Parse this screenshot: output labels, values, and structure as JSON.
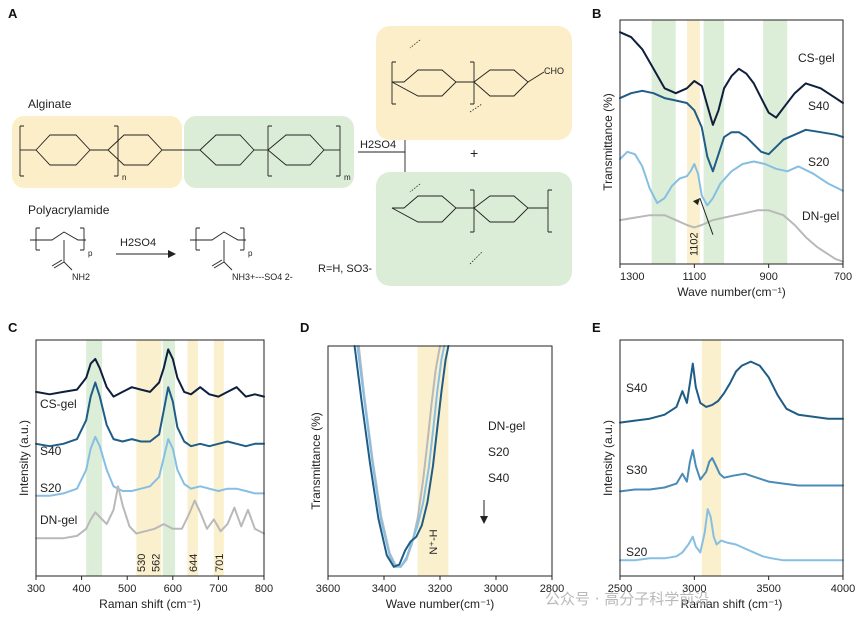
{
  "panel_labels": [
    "A",
    "B",
    "C",
    "D",
    "E"
  ],
  "panel_a": {
    "alginate_label": "Alginate",
    "polyacrylamide_label": "Polyacrylamide",
    "reagent": "H2SO4",
    "plus": "+",
    "r_definition": "R=H, SO3-",
    "sulfate_label": "SO4 2-",
    "amide_product": "NH3+---SO4 2-",
    "nh2": "NH2",
    "p": "p",
    "n": "n",
    "m": "m",
    "cho": "CHO"
  },
  "colors": {
    "cs_gel": "#0d1f3c",
    "s40": "#1f5d86",
    "s30": "#4a8bb8",
    "s20": "#86bfe3",
    "dn_gel": "#b9b9b9",
    "yellow_band": "#fbeec8",
    "green_band": "#d9ecd4",
    "panel_a_yellow": "#fbeec8",
    "panel_a_green": "#dcedd7"
  },
  "chart_data": [
    {
      "id": "B",
      "type": "line",
      "xlabel": "Wave number(cm⁻¹)",
      "ylabel": "Transmittance (%)",
      "xlim": [
        1300,
        700
      ],
      "xticks": [
        "1300",
        "1100",
        "900",
        "700"
      ],
      "annotation": "1102",
      "bands": [
        {
          "kind": "green",
          "from": 1215,
          "to": 1150
        },
        {
          "kind": "yellow",
          "from": 1120,
          "to": 1085
        },
        {
          "kind": "green",
          "from": 1075,
          "to": 1020
        },
        {
          "kind": "green",
          "from": 915,
          "to": 850
        }
      ],
      "series": [
        {
          "name": "CS-gel",
          "x": [
            1300,
            1270,
            1240,
            1210,
            1180,
            1150,
            1120,
            1100,
            1080,
            1065,
            1050,
            1035,
            1020,
            1000,
            980,
            960,
            940,
            920,
            900,
            880,
            860,
            830,
            800,
            760,
            720,
            700
          ],
          "y": [
            95,
            93,
            88,
            80,
            72,
            70,
            72,
            75,
            73,
            65,
            57,
            63,
            72,
            77,
            80,
            78,
            74,
            68,
            62,
            60,
            64,
            70,
            74,
            72,
            68,
            66
          ]
        },
        {
          "name": "S40",
          "x": [
            1300,
            1270,
            1240,
            1210,
            1180,
            1150,
            1120,
            1100,
            1080,
            1065,
            1050,
            1035,
            1020,
            1000,
            980,
            960,
            940,
            920,
            900,
            880,
            860,
            830,
            800,
            760,
            720,
            700
          ],
          "y": [
            68,
            70,
            71,
            70,
            68,
            67,
            66,
            63,
            56,
            44,
            38,
            45,
            52,
            54,
            54,
            52,
            49,
            46,
            45,
            48,
            51,
            53,
            55,
            54,
            53,
            52
          ]
        },
        {
          "name": "S20",
          "x": [
            1300,
            1280,
            1260,
            1240,
            1220,
            1200,
            1180,
            1160,
            1140,
            1120,
            1110,
            1100,
            1090,
            1080,
            1065,
            1050,
            1030,
            1000,
            970,
            940,
            910,
            880,
            850,
            820,
            780,
            740,
            700
          ],
          "y": [
            43,
            46,
            45,
            40,
            31,
            25,
            27,
            32,
            35,
            36,
            38,
            41,
            37,
            28,
            24,
            27,
            33,
            38,
            41,
            42,
            41,
            39,
            38,
            40,
            37,
            33,
            30
          ]
        },
        {
          "name": "DN-gel",
          "x": [
            1300,
            1260,
            1220,
            1180,
            1150,
            1120,
            1100,
            1080,
            1050,
            1020,
            990,
            960,
            930,
            900,
            880,
            860,
            830,
            800,
            770,
            740,
            720,
            700
          ],
          "y": [
            18,
            19,
            20,
            20,
            18,
            16,
            15,
            16,
            18,
            19,
            20,
            21,
            22,
            22,
            21,
            20,
            16,
            11,
            7,
            4,
            2,
            1
          ]
        }
      ]
    },
    {
      "id": "C",
      "type": "line",
      "xlabel": "Raman shift (cm⁻¹)",
      "ylabel": "Intensity (a.u.)",
      "xlim": [
        300,
        800
      ],
      "xticks": [
        "300",
        "400",
        "500",
        "600",
        "700",
        "800"
      ],
      "peak_labels": [
        "530",
        "562",
        "644",
        "701"
      ],
      "bands": [
        {
          "kind": "green",
          "from": 410,
          "to": 445
        },
        {
          "kind": "yellow",
          "from": 520,
          "to": 575
        },
        {
          "kind": "green",
          "from": 578,
          "to": 605
        },
        {
          "kind": "yellow",
          "from": 632,
          "to": 655
        },
        {
          "kind": "yellow",
          "from": 690,
          "to": 712
        }
      ],
      "series": [
        {
          "name": "CS-gel",
          "x": [
            300,
            330,
            360,
            390,
            410,
            420,
            430,
            440,
            455,
            470,
            490,
            510,
            530,
            550,
            570,
            580,
            590,
            600,
            610,
            625,
            640,
            660,
            680,
            700,
            720,
            740,
            760,
            780,
            800
          ],
          "y": [
            78,
            77,
            78,
            79,
            84,
            90,
            92,
            88,
            80,
            76,
            78,
            80,
            79,
            78,
            82,
            88,
            96,
            92,
            84,
            78,
            77,
            80,
            77,
            76,
            78,
            80,
            76,
            77,
            76
          ]
        },
        {
          "name": "S40",
          "x": [
            300,
            330,
            360,
            390,
            410,
            420,
            430,
            440,
            455,
            470,
            490,
            510,
            530,
            550,
            570,
            580,
            590,
            600,
            610,
            625,
            640,
            660,
            680,
            700,
            720,
            740,
            760,
            780,
            800
          ],
          "y": [
            56,
            55,
            56,
            58,
            66,
            76,
            82,
            76,
            64,
            58,
            57,
            58,
            57,
            57,
            60,
            70,
            80,
            74,
            63,
            57,
            55,
            56,
            55,
            56,
            57,
            56,
            55,
            56,
            56
          ]
        },
        {
          "name": "S20",
          "x": [
            300,
            330,
            360,
            390,
            410,
            420,
            430,
            440,
            455,
            470,
            490,
            510,
            530,
            550,
            570,
            580,
            590,
            600,
            610,
            625,
            640,
            660,
            680,
            700,
            720,
            740,
            760,
            780,
            800
          ],
          "y": [
            34,
            34,
            35,
            37,
            45,
            54,
            59,
            55,
            45,
            38,
            36,
            36,
            37,
            38,
            42,
            50,
            58,
            54,
            45,
            39,
            37,
            38,
            37,
            36,
            37,
            37,
            36,
            35,
            35
          ]
        },
        {
          "name": "DN-gel",
          "x": [
            300,
            330,
            360,
            390,
            410,
            420,
            430,
            440,
            455,
            470,
            480,
            490,
            505,
            520,
            540,
            560,
            580,
            600,
            620,
            635,
            648,
            660,
            675,
            690,
            705,
            720,
            735,
            750,
            765,
            780,
            800
          ],
          "y": [
            16,
            16,
            16,
            17,
            20,
            24,
            27,
            25,
            22,
            28,
            38,
            30,
            21,
            18,
            19,
            20,
            22,
            20,
            20,
            26,
            32,
            27,
            20,
            24,
            19,
            22,
            29,
            21,
            28,
            20,
            18
          ]
        }
      ]
    },
    {
      "id": "D",
      "type": "line",
      "xlabel": "Wave number(cm⁻¹)",
      "ylabel": "Transmittance (%)",
      "xlim": [
        3600,
        2800
      ],
      "xticks": [
        "3600",
        "3400",
        "3200",
        "3000",
        "2800"
      ],
      "band_label": "N⁺-H",
      "legend": [
        "DN-gel",
        "S20",
        "S40"
      ],
      "bands": [
        {
          "kind": "yellow",
          "from": 3280,
          "to": 3170
        }
      ],
      "series": [
        {
          "name": "DN-gel",
          "x": [
            3490,
            3470,
            3440,
            3410,
            3380,
            3360,
            3340,
            3320,
            3300,
            3280,
            3260,
            3245,
            3230,
            3215,
            3200
          ],
          "y": [
            100,
            78,
            50,
            26,
            10,
            5,
            4,
            7,
            14,
            25,
            42,
            58,
            75,
            90,
            100
          ]
        },
        {
          "name": "S20",
          "x": [
            3495,
            3470,
            3440,
            3410,
            3380,
            3360,
            3340,
            3320,
            3300,
            3280,
            3260,
            3240,
            3225,
            3210,
            3195,
            3185
          ],
          "y": [
            100,
            76,
            48,
            24,
            9,
            4,
            4,
            8,
            15,
            22,
            32,
            47,
            63,
            80,
            94,
            100
          ]
        },
        {
          "name": "S40",
          "x": [
            3505,
            3480,
            3450,
            3420,
            3390,
            3365,
            3345,
            3325,
            3305,
            3285,
            3265,
            3245,
            3225,
            3210,
            3195,
            3180,
            3170
          ],
          "y": [
            100,
            76,
            49,
            25,
            9,
            4,
            5,
            11,
            15,
            17,
            22,
            32,
            48,
            64,
            80,
            94,
            100
          ]
        }
      ]
    },
    {
      "id": "E",
      "type": "line",
      "xlabel": "Raman shift (cm⁻¹)",
      "ylabel": "Intensity (a.u.)",
      "xlim": [
        2500,
        4000
      ],
      "xticks": [
        "2500",
        "3000",
        "3500",
        "4000"
      ],
      "bands": [
        {
          "kind": "yellow",
          "from": 3050,
          "to": 3180
        }
      ],
      "series": [
        {
          "name": "S40",
          "x": [
            2500,
            2600,
            2700,
            2800,
            2880,
            2920,
            2950,
            2970,
            2990,
            3010,
            3040,
            3080,
            3120,
            3160,
            3200,
            3240,
            3280,
            3320,
            3380,
            3440,
            3500,
            3560,
            3620,
            3700,
            3800,
            3900,
            4000
          ],
          "y": [
            78,
            79,
            80,
            82,
            86,
            94,
            88,
            98,
            108,
            96,
            88,
            86,
            87,
            89,
            93,
            98,
            104,
            107,
            109,
            107,
            101,
            92,
            85,
            82,
            81,
            80,
            80
          ]
        },
        {
          "name": "S30",
          "x": [
            2500,
            2600,
            2700,
            2800,
            2880,
            2920,
            2950,
            2970,
            2990,
            3010,
            3040,
            3080,
            3100,
            3120,
            3140,
            3170,
            3200,
            3260,
            3340,
            3420,
            3500,
            3600,
            3700,
            3800,
            3900,
            4000
          ],
          "y": [
            43,
            44,
            44,
            45,
            47,
            52,
            48,
            58,
            64,
            56,
            49,
            53,
            58,
            60,
            57,
            52,
            50,
            51,
            52,
            50,
            48,
            47,
            46,
            46,
            46,
            46
          ]
        },
        {
          "name": "S20",
          "x": [
            2500,
            2600,
            2700,
            2800,
            2880,
            2920,
            2960,
            2990,
            3010,
            3040,
            3070,
            3090,
            3110,
            3130,
            3150,
            3180,
            3220,
            3280,
            3340,
            3400,
            3460,
            3520,
            3600,
            3700,
            3800,
            3900,
            4000
          ],
          "y": [
            8,
            8,
            9,
            9,
            10,
            12,
            16,
            20,
            15,
            12,
            22,
            34,
            30,
            20,
            16,
            18,
            17,
            16,
            14,
            12,
            10,
            9,
            8,
            8,
            8,
            8,
            8
          ]
        }
      ]
    }
  ],
  "watermark": "公众号 · 高分子科学前沿"
}
